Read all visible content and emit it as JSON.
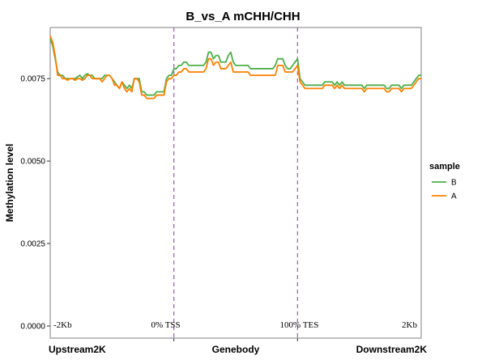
{
  "chart_data": {
    "type": "line",
    "title": "B_vs_A  mCHH/CHH",
    "ylabel": "Methylation level",
    "ylim": [
      0,
      0.009
    ],
    "yticks": [
      0.0,
      0.0025,
      0.005,
      0.0075
    ],
    "ytick_labels": [
      "0.0000",
      "0.0025",
      "0.0050",
      "0.0075"
    ],
    "xlim": [
      0,
      150
    ],
    "region_labels": [
      "Upstream2K",
      "Genebody",
      "Downstream2K"
    ],
    "boundaries": [
      50,
      100
    ],
    "annotations": [
      "-2Kb",
      "0% TSS",
      "100% TES",
      "2Kb"
    ],
    "grid": false,
    "legend": {
      "title": "sample",
      "placement": "right"
    },
    "series": [
      {
        "name": "B",
        "color": "#4daf4a",
        "points": [
          [
            0,
            0.0087
          ],
          [
            1,
            0.0085
          ],
          [
            2,
            0.0081
          ],
          [
            3,
            0.0077
          ],
          [
            4,
            0.0076
          ],
          [
            5,
            0.0076
          ],
          [
            6,
            0.0075
          ],
          [
            7,
            0.0075
          ],
          [
            8,
            0.0075
          ],
          [
            9,
            0.0075
          ],
          [
            10,
            0.0075
          ],
          [
            11,
            0.00755
          ],
          [
            12,
            0.0076
          ],
          [
            13,
            0.0075
          ],
          [
            14,
            0.0076
          ],
          [
            15,
            0.00765
          ],
          [
            16,
            0.0076
          ],
          [
            17,
            0.0076
          ],
          [
            18,
            0.0075
          ],
          [
            19,
            0.0075
          ],
          [
            20,
            0.0075
          ],
          [
            21,
            0.0075
          ],
          [
            22,
            0.0076
          ],
          [
            23,
            0.0076
          ],
          [
            24,
            0.0076
          ],
          [
            25,
            0.0075
          ],
          [
            26,
            0.0074
          ],
          [
            27,
            0.0073
          ],
          [
            28,
            0.0072
          ],
          [
            29,
            0.0074
          ],
          [
            30,
            0.0073
          ],
          [
            31,
            0.0072
          ],
          [
            32,
            0.0073
          ],
          [
            33,
            0.0072
          ],
          [
            34,
            0.0075
          ],
          [
            35,
            0.0075
          ],
          [
            36,
            0.0075
          ],
          [
            37,
            0.0071
          ],
          [
            38,
            0.0071
          ],
          [
            39,
            0.007
          ],
          [
            40,
            0.007
          ],
          [
            41,
            0.007
          ],
          [
            42,
            0.007
          ],
          [
            43,
            0.0071
          ],
          [
            44,
            0.0071
          ],
          [
            45,
            0.0071
          ],
          [
            46,
            0.0071
          ],
          [
            47,
            0.0075
          ],
          [
            48,
            0.0076
          ],
          [
            49,
            0.0076
          ],
          [
            50,
            0.0078
          ],
          [
            51,
            0.0078
          ],
          [
            52,
            0.0079
          ],
          [
            53,
            0.0079
          ],
          [
            54,
            0.008
          ],
          [
            55,
            0.008
          ],
          [
            56,
            0.0079
          ],
          [
            57,
            0.0079
          ],
          [
            58,
            0.0079
          ],
          [
            59,
            0.0079
          ],
          [
            60,
            0.0079
          ],
          [
            61,
            0.0079
          ],
          [
            62,
            0.0079
          ],
          [
            63,
            0.008
          ],
          [
            64,
            0.0083
          ],
          [
            65,
            0.0083
          ],
          [
            66,
            0.0081
          ],
          [
            67,
            0.0082
          ],
          [
            68,
            0.0082
          ],
          [
            69,
            0.008
          ],
          [
            70,
            0.008
          ],
          [
            71,
            0.008
          ],
          [
            72,
            0.0082
          ],
          [
            73,
            0.0083
          ],
          [
            74,
            0.008
          ],
          [
            75,
            0.0079
          ],
          [
            76,
            0.0079
          ],
          [
            77,
            0.0079
          ],
          [
            78,
            0.0079
          ],
          [
            79,
            0.0079
          ],
          [
            80,
            0.0079
          ],
          [
            81,
            0.0078
          ],
          [
            82,
            0.0078
          ],
          [
            83,
            0.0078
          ],
          [
            84,
            0.0078
          ],
          [
            85,
            0.0078
          ],
          [
            86,
            0.0078
          ],
          [
            87,
            0.0078
          ],
          [
            88,
            0.0078
          ],
          [
            89,
            0.0078
          ],
          [
            90,
            0.0078
          ],
          [
            91,
            0.0079
          ],
          [
            92,
            0.0081
          ],
          [
            93,
            0.0081
          ],
          [
            94,
            0.0081
          ],
          [
            95,
            0.0079
          ],
          [
            96,
            0.0078
          ],
          [
            97,
            0.0078
          ],
          [
            98,
            0.0079
          ],
          [
            99,
            0.008
          ],
          [
            100,
            0.0081
          ],
          [
            101,
            0.0075
          ],
          [
            102,
            0.0074
          ],
          [
            103,
            0.0073
          ],
          [
            104,
            0.0073
          ],
          [
            105,
            0.0073
          ],
          [
            106,
            0.0073
          ],
          [
            107,
            0.0073
          ],
          [
            108,
            0.0073
          ],
          [
            109,
            0.0073
          ],
          [
            110,
            0.0073
          ],
          [
            111,
            0.0074
          ],
          [
            112,
            0.0074
          ],
          [
            113,
            0.0074
          ],
          [
            114,
            0.0074
          ],
          [
            115,
            0.0073
          ],
          [
            116,
            0.0074
          ],
          [
            117,
            0.0073
          ],
          [
            118,
            0.0074
          ],
          [
            119,
            0.0073
          ],
          [
            120,
            0.0073
          ],
          [
            121,
            0.0073
          ],
          [
            122,
            0.0073
          ],
          [
            123,
            0.0073
          ],
          [
            124,
            0.0073
          ],
          [
            125,
            0.0073
          ],
          [
            126,
            0.0073
          ],
          [
            127,
            0.0072
          ],
          [
            128,
            0.0073
          ],
          [
            129,
            0.0073
          ],
          [
            130,
            0.0073
          ],
          [
            131,
            0.0073
          ],
          [
            132,
            0.0073
          ],
          [
            133,
            0.0073
          ],
          [
            134,
            0.0073
          ],
          [
            135,
            0.0073
          ],
          [
            136,
            0.0072
          ],
          [
            137,
            0.0072
          ],
          [
            138,
            0.0073
          ],
          [
            139,
            0.0073
          ],
          [
            140,
            0.0073
          ],
          [
            141,
            0.0073
          ],
          [
            142,
            0.0072
          ],
          [
            143,
            0.0073
          ],
          [
            144,
            0.0073
          ],
          [
            145,
            0.0073
          ],
          [
            146,
            0.0073
          ],
          [
            147,
            0.0074
          ],
          [
            148,
            0.0075
          ],
          [
            149,
            0.0076
          ],
          [
            150,
            0.0076
          ]
        ]
      },
      {
        "name": "A",
        "color": "#ff7f00",
        "points": [
          [
            0,
            0.0088
          ],
          [
            1,
            0.0086
          ],
          [
            2,
            0.0082
          ],
          [
            3,
            0.0076
          ],
          [
            4,
            0.0076
          ],
          [
            5,
            0.0075
          ],
          [
            6,
            0.0075
          ],
          [
            7,
            0.00745
          ],
          [
            8,
            0.0075
          ],
          [
            9,
            0.0075
          ],
          [
            10,
            0.00745
          ],
          [
            11,
            0.0075
          ],
          [
            12,
            0.0075
          ],
          [
            13,
            0.00745
          ],
          [
            14,
            0.0075
          ],
          [
            15,
            0.0076
          ],
          [
            16,
            0.0076
          ],
          [
            17,
            0.0075
          ],
          [
            18,
            0.0075
          ],
          [
            19,
            0.0075
          ],
          [
            20,
            0.0075
          ],
          [
            21,
            0.0074
          ],
          [
            22,
            0.0075
          ],
          [
            23,
            0.0076
          ],
          [
            24,
            0.0076
          ],
          [
            25,
            0.0075
          ],
          [
            26,
            0.0073
          ],
          [
            27,
            0.0073
          ],
          [
            28,
            0.0072
          ],
          [
            29,
            0.0074
          ],
          [
            30,
            0.0072
          ],
          [
            31,
            0.0071
          ],
          [
            32,
            0.0072
          ],
          [
            33,
            0.0071
          ],
          [
            34,
            0.0075
          ],
          [
            35,
            0.0075
          ],
          [
            36,
            0.0074
          ],
          [
            37,
            0.007
          ],
          [
            38,
            0.007
          ],
          [
            39,
            0.0069
          ],
          [
            40,
            0.0069
          ],
          [
            41,
            0.0069
          ],
          [
            42,
            0.0069
          ],
          [
            43,
            0.007
          ],
          [
            44,
            0.007
          ],
          [
            45,
            0.007
          ],
          [
            46,
            0.007
          ],
          [
            47,
            0.0074
          ],
          [
            48,
            0.0075
          ],
          [
            49,
            0.0075
          ],
          [
            50,
            0.0076
          ],
          [
            51,
            0.0076
          ],
          [
            52,
            0.0077
          ],
          [
            53,
            0.0077
          ],
          [
            54,
            0.0078
          ],
          [
            55,
            0.0078
          ],
          [
            56,
            0.0077
          ],
          [
            57,
            0.0077
          ],
          [
            58,
            0.0077
          ],
          [
            59,
            0.0077
          ],
          [
            60,
            0.0077
          ],
          [
            61,
            0.0077
          ],
          [
            62,
            0.0077
          ],
          [
            63,
            0.0078
          ],
          [
            64,
            0.0081
          ],
          [
            65,
            0.0081
          ],
          [
            66,
            0.0079
          ],
          [
            67,
            0.008
          ],
          [
            68,
            0.008
          ],
          [
            69,
            0.0078
          ],
          [
            70,
            0.0078
          ],
          [
            71,
            0.0078
          ],
          [
            72,
            0.0079
          ],
          [
            73,
            0.008
          ],
          [
            74,
            0.0077
          ],
          [
            75,
            0.0077
          ],
          [
            76,
            0.0077
          ],
          [
            77,
            0.0077
          ],
          [
            78,
            0.0077
          ],
          [
            79,
            0.0077
          ],
          [
            80,
            0.0077
          ],
          [
            81,
            0.0076
          ],
          [
            82,
            0.0076
          ],
          [
            83,
            0.0076
          ],
          [
            84,
            0.0076
          ],
          [
            85,
            0.0076
          ],
          [
            86,
            0.0076
          ],
          [
            87,
            0.0076
          ],
          [
            88,
            0.0076
          ],
          [
            89,
            0.0076
          ],
          [
            90,
            0.0076
          ],
          [
            91,
            0.0076
          ],
          [
            92,
            0.0079
          ],
          [
            93,
            0.0079
          ],
          [
            94,
            0.0079
          ],
          [
            95,
            0.0077
          ],
          [
            96,
            0.0077
          ],
          [
            97,
            0.0077
          ],
          [
            98,
            0.0077
          ],
          [
            99,
            0.0078
          ],
          [
            100,
            0.0079
          ],
          [
            101,
            0.0074
          ],
          [
            102,
            0.0073
          ],
          [
            103,
            0.0072
          ],
          [
            104,
            0.0072
          ],
          [
            105,
            0.0072
          ],
          [
            106,
            0.0072
          ],
          [
            107,
            0.0072
          ],
          [
            108,
            0.0072
          ],
          [
            109,
            0.0072
          ],
          [
            110,
            0.0072
          ],
          [
            111,
            0.0073
          ],
          [
            112,
            0.0073
          ],
          [
            113,
            0.0073
          ],
          [
            114,
            0.0073
          ],
          [
            115,
            0.0072
          ],
          [
            116,
            0.0073
          ],
          [
            117,
            0.0072
          ],
          [
            118,
            0.0073
          ],
          [
            119,
            0.0072
          ],
          [
            120,
            0.0072
          ],
          [
            121,
            0.0072
          ],
          [
            122,
            0.0072
          ],
          [
            123,
            0.0072
          ],
          [
            124,
            0.0072
          ],
          [
            125,
            0.0072
          ],
          [
            126,
            0.0072
          ],
          [
            127,
            0.0071
          ],
          [
            128,
            0.0072
          ],
          [
            129,
            0.0072
          ],
          [
            130,
            0.0072
          ],
          [
            131,
            0.0072
          ],
          [
            132,
            0.0072
          ],
          [
            133,
            0.0072
          ],
          [
            134,
            0.0072
          ],
          [
            135,
            0.0072
          ],
          [
            136,
            0.0071
          ],
          [
            137,
            0.0071
          ],
          [
            138,
            0.0072
          ],
          [
            139,
            0.0072
          ],
          [
            140,
            0.0072
          ],
          [
            141,
            0.0072
          ],
          [
            142,
            0.0071
          ],
          [
            143,
            0.0072
          ],
          [
            144,
            0.0072
          ],
          [
            145,
            0.0072
          ],
          [
            146,
            0.0072
          ],
          [
            147,
            0.0073
          ],
          [
            148,
            0.0074
          ],
          [
            149,
            0.0075
          ],
          [
            150,
            0.0075
          ]
        ]
      }
    ]
  }
}
